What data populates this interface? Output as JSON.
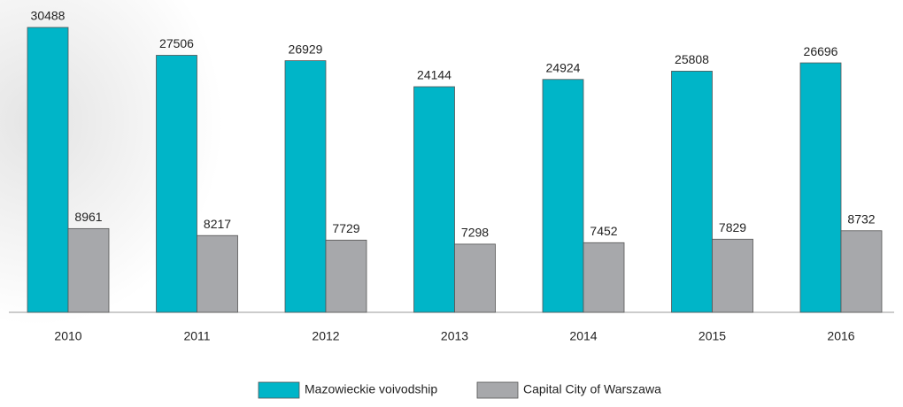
{
  "chart_data": {
    "type": "bar",
    "categories": [
      "2010",
      "2011",
      "2012",
      "2013",
      "2014",
      "2015",
      "2016"
    ],
    "series": [
      {
        "name": "Mazowieckie voivodship",
        "color": "#00b5c8",
        "values": [
          30488,
          27506,
          26929,
          24144,
          24924,
          25808,
          26696
        ]
      },
      {
        "name": "Capital City of Warszawa",
        "color": "#a7a8ab",
        "values": [
          8961,
          8217,
          7729,
          7298,
          7452,
          7829,
          8732
        ]
      }
    ],
    "legend": "bottom"
  }
}
